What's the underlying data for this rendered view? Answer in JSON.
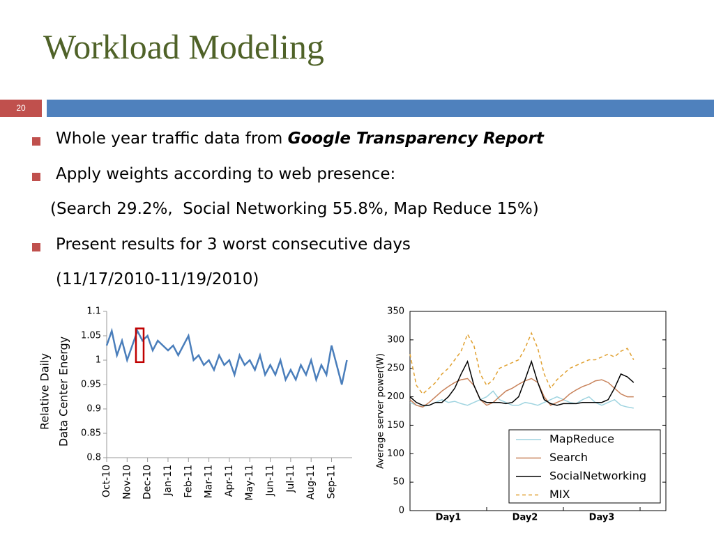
{
  "slide": {
    "title": "Workload Modeling",
    "number": "20",
    "bullets": [
      {
        "text": "Whole year traffic data from",
        "emphasis": "Google Transparency Report"
      },
      {
        "text": "Apply weights according to web presence:",
        "continuation": "(Search 29.2%,  Social Networking 55.8%, Map Reduce 15%)"
      },
      {
        "text": "Present results for 3 worst consecutive days",
        "continuation": "(11/17/2010-11/19/2010)"
      }
    ]
  },
  "chart_data": [
    {
      "type": "line",
      "ylabel": [
        "Relative Daily",
        "Data Center Energy"
      ],
      "categories": [
        "Oct-10",
        null,
        null,
        null,
        "Nov-10",
        null,
        null,
        null,
        "Dec-10",
        null,
        null,
        null,
        "Jan-11",
        null,
        null,
        null,
        "Feb-11",
        null,
        null,
        null,
        "Mar-11",
        null,
        null,
        null,
        "Apr-11",
        null,
        null,
        null,
        "May-11",
        null,
        null,
        null,
        "Jun-11",
        null,
        null,
        null,
        "Jul-11",
        null,
        null,
        null,
        "Aug-11",
        null,
        null,
        null,
        "Sep-11",
        null,
        null,
        null
      ],
      "series": [
        {
          "color": "#4a7ebb",
          "values": [
            1.03,
            1.06,
            1.01,
            1.04,
            1.0,
            1.03,
            1.06,
            1.04,
            1.05,
            1.02,
            1.04,
            1.03,
            1.02,
            1.03,
            1.01,
            1.03,
            1.05,
            1.0,
            1.01,
            0.99,
            1.0,
            0.98,
            1.01,
            0.99,
            1.0,
            0.97,
            1.01,
            0.99,
            1.0,
            0.98,
            1.01,
            0.97,
            0.99,
            0.97,
            1.0,
            0.96,
            0.98,
            0.96,
            0.99,
            0.97,
            1.0,
            0.96,
            0.99,
            0.97,
            1.03,
            0.99,
            0.95,
            1.0
          ]
        }
      ],
      "ylim": [
        0.8,
        1.1
      ],
      "yticks": [
        0.8,
        0.85,
        0.9,
        0.95,
        1,
        1.05,
        1.1
      ]
    },
    {
      "type": "line",
      "ylabel": "Average server power(W)",
      "categories": [
        null,
        null,
        null,
        null,
        null,
        null,
        "Day1",
        null,
        null,
        null,
        null,
        null,
        null,
        null,
        null,
        null,
        null,
        null,
        "Day2",
        null,
        null,
        null,
        null,
        null,
        null,
        null,
        null,
        null,
        null,
        null,
        "Day3",
        null,
        null,
        null,
        null,
        null
      ],
      "series": [
        {
          "name": "MapReduce",
          "color": "#9fd4e0",
          "dash": false,
          "values": [
            190,
            185,
            183,
            185,
            190,
            195,
            190,
            192,
            188,
            185,
            190,
            195,
            200,
            210,
            195,
            190,
            185,
            185,
            190,
            188,
            185,
            190,
            195,
            200,
            195,
            190,
            188,
            195,
            200,
            190,
            185,
            190,
            195,
            185,
            182,
            180
          ]
        },
        {
          "name": "Search",
          "color": "#c8825a",
          "dash": false,
          "values": [
            195,
            185,
            182,
            190,
            200,
            210,
            218,
            225,
            230,
            232,
            220,
            195,
            185,
            190,
            200,
            210,
            215,
            222,
            228,
            232,
            225,
            200,
            185,
            190,
            195,
            205,
            212,
            218,
            222,
            228,
            230,
            225,
            215,
            205,
            200,
            200
          ]
        },
        {
          "name": "SocialNetworking",
          "color": "#000000",
          "dash": false,
          "values": [
            200,
            190,
            185,
            185,
            190,
            190,
            200,
            215,
            240,
            262,
            220,
            195,
            190,
            190,
            190,
            188,
            190,
            200,
            230,
            262,
            225,
            195,
            188,
            185,
            188,
            188,
            188,
            190,
            190,
            190,
            190,
            195,
            215,
            240,
            235,
            225
          ]
        },
        {
          "name": "MIX",
          "color": "#e0a030",
          "dash": true,
          "values": [
            275,
            220,
            205,
            215,
            225,
            240,
            250,
            265,
            280,
            310,
            290,
            240,
            220,
            230,
            250,
            255,
            260,
            265,
            285,
            312,
            285,
            240,
            215,
            230,
            240,
            250,
            255,
            260,
            265,
            265,
            270,
            275,
            270,
            280,
            285,
            265
          ]
        }
      ],
      "ylim": [
        0,
        350
      ],
      "yticks": [
        0,
        50,
        100,
        150,
        200,
        250,
        300,
        350
      ],
      "legend": "lower right"
    }
  ]
}
